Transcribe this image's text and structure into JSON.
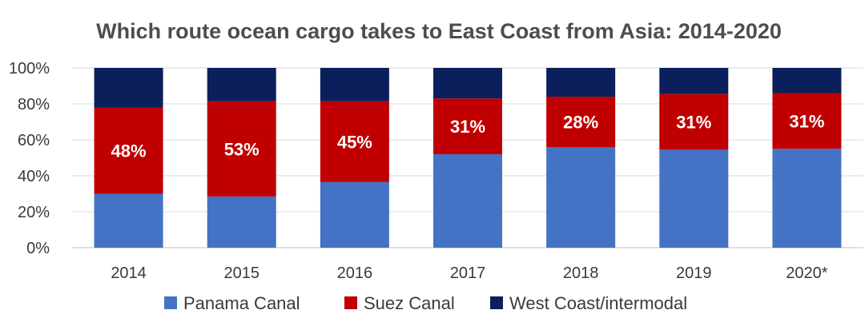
{
  "chart_data": {
    "type": "bar",
    "stacked": true,
    "percent_stacked": true,
    "title": "Which route ocean cargo takes to East Coast from Asia: 2014-2020",
    "categories": [
      "2014",
      "2015",
      "2016",
      "2017",
      "2018",
      "2019",
      "2020*"
    ],
    "series": [
      {
        "name": "Panama Canal",
        "color": "#4472c4",
        "values": [
          30,
          28.5,
          36.5,
          52,
          56,
          54.5,
          55
        ]
      },
      {
        "name": "Suez Canal",
        "color": "#c00000",
        "values": [
          48,
          53,
          45,
          31,
          28,
          31,
          31
        ],
        "data_labels": [
          "48%",
          "53%",
          "45%",
          "31%",
          "28%",
          "31%",
          "31%"
        ]
      },
      {
        "name": "West Coast/intermodal",
        "color": "#0b1f5c",
        "values": [
          22,
          18.5,
          18.5,
          17,
          16,
          14.5,
          14
        ]
      }
    ],
    "y_ticks": [
      "0%",
      "20%",
      "40%",
      "60%",
      "80%",
      "100%"
    ],
    "ylim": [
      0,
      100
    ],
    "grid": true,
    "legend_position": "bottom"
  }
}
